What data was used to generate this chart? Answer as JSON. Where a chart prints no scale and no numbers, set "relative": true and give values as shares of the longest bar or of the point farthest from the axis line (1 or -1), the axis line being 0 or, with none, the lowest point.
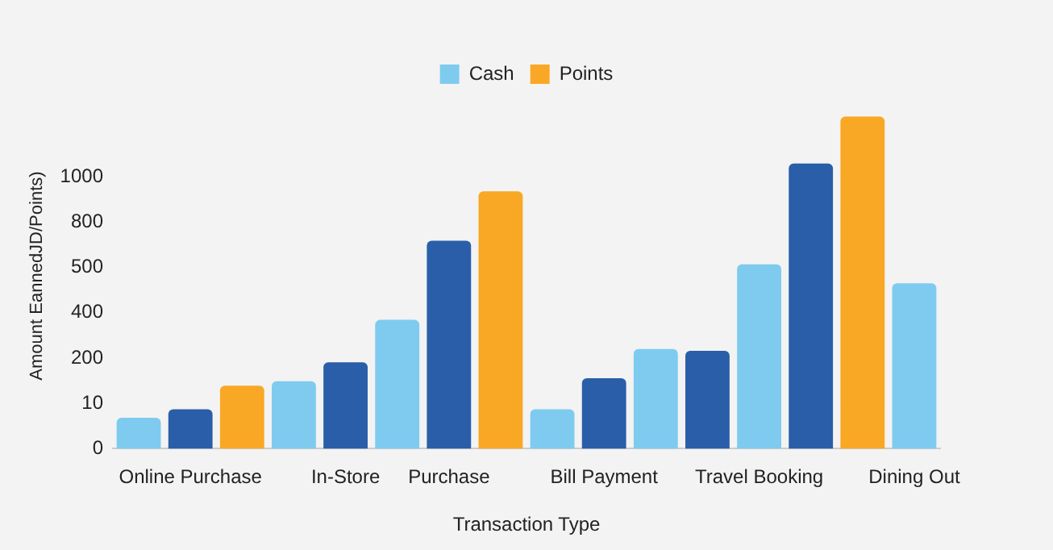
{
  "chart_data": {
    "type": "bar",
    "xlabel": "Transaction Type",
    "ylabel": "Amount EannedJD/Points)",
    "categories": [
      null,
      "Online Purchase",
      null,
      null,
      "In-Store",
      null,
      "Purchase",
      null,
      null,
      "Bill Payment",
      null,
      null,
      "Travel Booking",
      null,
      null,
      "Dining Out"
    ],
    "stacked": true,
    "relative": true,
    "series": [
      {
        "name": "Cash",
        "color": "#7ecbef",
        "values": [
          0.093,
          null,
          null,
          0.203,
          null,
          0.388,
          null,
          null,
          0.119,
          null,
          0.3,
          null,
          0.555,
          null,
          null,
          0.498
        ]
      },
      {
        "color": "#2a5ea8",
        "values": [
          null,
          0.119,
          null,
          null,
          0.26,
          null,
          0.626,
          null,
          null,
          0.212,
          null,
          0.295,
          null,
          0.859,
          null,
          null
        ]
      },
      {
        "name": "Points",
        "color": "#f9a825",
        "values": [
          null,
          null,
          0.19,
          null,
          null,
          null,
          null,
          0.775,
          null,
          null,
          null,
          null,
          null,
          null,
          1,
          null
        ]
      }
    ],
    "annotations": [
      "0",
      "10",
      "200",
      "400",
      "500",
      "800",
      "1000"
    ],
    "legend": "top"
  }
}
